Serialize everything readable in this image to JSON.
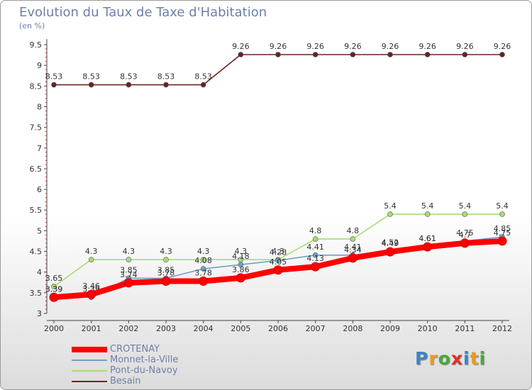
{
  "title": "Evolution du Taux de Taxe d'Habitation",
  "subtitle": "(en %)",
  "logo": {
    "text": "Proxiti",
    "colors": [
      "#3a86c8",
      "#e69b2a",
      "#49a93b",
      "#e0312a",
      "#3a86c8",
      "#e69b2a",
      "#49a93b"
    ]
  },
  "chart_data": {
    "type": "line",
    "title": "Evolution du Taux de Taxe d'Habitation",
    "ylabel": "(en %)",
    "xlabel": "",
    "x": [
      "2000",
      "2001",
      "2002",
      "2003",
      "2004",
      "2005",
      "2006",
      "2007",
      "2008",
      "2009",
      "2010",
      "2011",
      "2012"
    ],
    "ylim": [
      3,
      9.5
    ],
    "yticks": [
      "3",
      "3.5",
      "4",
      "4.5",
      "5",
      "5.5",
      "6",
      "6.5",
      "7",
      "7.5",
      "8",
      "8.5",
      "9",
      "9.5"
    ],
    "grid": false,
    "legend": "bottom-left",
    "series": [
      {
        "name": "Besain",
        "color": "#6b2222",
        "values": [
          8.53,
          8.53,
          8.53,
          8.53,
          8.53,
          9.26,
          9.26,
          9.26,
          9.26,
          9.26,
          9.26,
          9.26,
          9.26
        ],
        "labels": [
          "8.53",
          "8.53",
          "8.53",
          "8.53",
          "8.53",
          "9.26",
          "9.26",
          "9.26",
          "9.26",
          "9.26",
          "9.26",
          "9.26",
          "9.26"
        ]
      },
      {
        "name": "Pont-du-Navoy",
        "color": "#a6de6e",
        "values": [
          3.65,
          4.3,
          4.3,
          4.3,
          4.3,
          4.3,
          4.3,
          4.8,
          4.8,
          5.4,
          5.4,
          5.4,
          5.4
        ],
        "labels": [
          "3.65",
          "4.3",
          "4.3",
          "4.3",
          "4.3",
          "4.3",
          "4.3",
          "4.8",
          "4.8",
          "5.4",
          "5.4",
          "5.4",
          "5.4"
        ]
      },
      {
        "name": "Monnet-la-Ville",
        "color": "#6fa0c9",
        "values": [
          3.39,
          3.39,
          3.85,
          3.85,
          4.08,
          4.18,
          4.28,
          4.41,
          4.41,
          4.52,
          4.61,
          4.75,
          4.85
        ],
        "labels": [
          "3.39",
          "3.39",
          "3.85",
          "3.85",
          "4.08",
          "4.18",
          "4.28",
          "4.41",
          "4.41",
          "4.52",
          "4.61",
          "4.75",
          "4.85"
        ]
      },
      {
        "name": "CROTENAY",
        "color": "#ff0000",
        "values": [
          3.39,
          3.46,
          3.74,
          3.78,
          3.78,
          3.86,
          4.05,
          4.13,
          4.34,
          4.49,
          4.61,
          4.7,
          4.75
        ],
        "labels": [
          "3.39",
          "3.46",
          "3.74",
          "3.78",
          "3.78",
          "3.86",
          "4.05",
          "4.13",
          "4.34",
          "4.49",
          "4.61",
          "4.7",
          "4.75"
        ]
      }
    ]
  },
  "legend": {
    "items": [
      {
        "name": "CROTENAY",
        "color": "#ff0000"
      },
      {
        "name": "Monnet-la-Ville",
        "color": "#6fa0c9"
      },
      {
        "name": "Pont-du-Navoy",
        "color": "#a6de6e"
      },
      {
        "name": "Besain",
        "color": "#6b2222"
      }
    ]
  }
}
